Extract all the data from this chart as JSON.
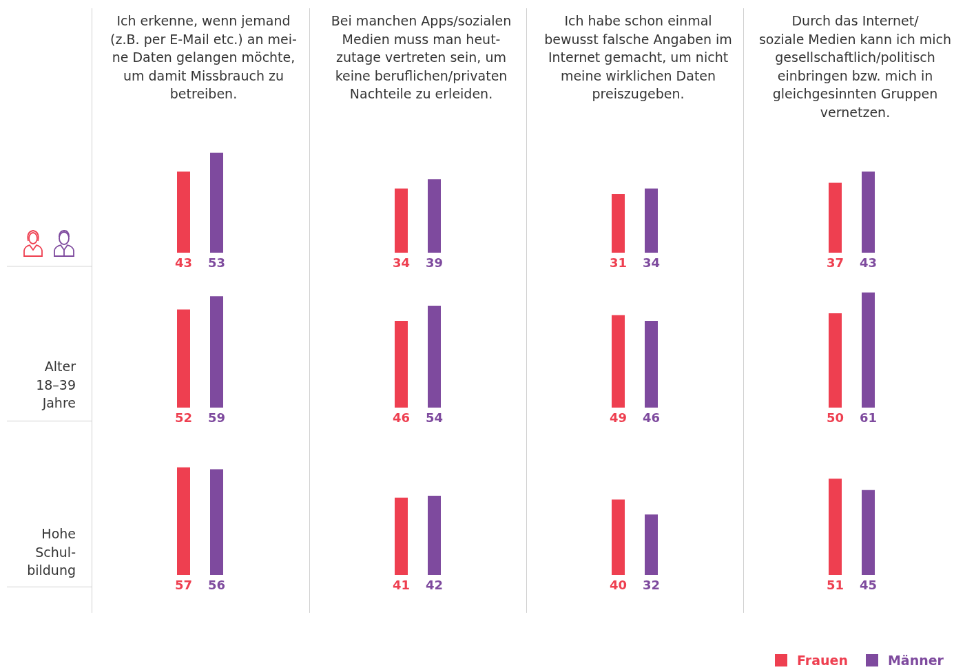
{
  "chart_data": [
    {
      "type": "bar",
      "title": "Ich erkenne, wenn jemand\n(z.B. per E-Mail etc.) an mei-\nne Daten gelangen möchte,\num damit Missbrauch zu\nbetreiben.",
      "categories": [
        null,
        null
      ],
      "values": [
        43,
        53
      ],
      "colors": [
        "#ee3f50",
        "#7e4a9e"
      ],
      "data_labels": true,
      "tick_labels": false,
      "grid": false
    },
    {
      "type": "bar",
      "title": "Bei manchen Apps/sozialen\nMedien muss man heut-\nzutage vertreten sein, um\nkeine beruflichen/privaten\nNachteile zu erleiden.",
      "categories": [
        null,
        null
      ],
      "values": [
        34,
        39
      ],
      "colors": [
        "#ee3f50",
        "#7e4a9e"
      ],
      "data_labels": true,
      "tick_labels": false,
      "grid": false
    },
    {
      "type": "bar",
      "title": "Ich habe schon einmal\nbewusst falsche Angaben im\nInternet gemacht, um nicht\nmeine wirklichen Daten\npreiszugeben.",
      "categories": [
        null,
        null
      ],
      "values": [
        31,
        34
      ],
      "colors": [
        "#ee3f50",
        "#7e4a9e"
      ],
      "data_labels": true,
      "tick_labels": false,
      "grid": false
    },
    {
      "type": "bar",
      "title": "Durch das Internet/\nsoziale Medien kann ich mich\ngesellschaftlich/politisch\neinbringen bzw. mich in\ngleichgesinnten Gruppen\nvernetzen.",
      "categories": [
        null,
        null
      ],
      "values": [
        37,
        43
      ],
      "colors": [
        "#ee3f50",
        "#7e4a9e"
      ],
      "data_labels": true,
      "tick_labels": false,
      "grid": false
    },
    {
      "type": "bar",
      "ylabel": "Alter\n18–39\nJahre",
      "categories": [
        null,
        null
      ],
      "values": [
        52,
        59
      ],
      "colors": [
        "#ee3f50",
        "#7e4a9e"
      ],
      "data_labels": true,
      "tick_labels": false,
      "grid": false
    },
    {
      "type": "bar",
      "categories": [
        null,
        null
      ],
      "values": [
        46,
        54
      ],
      "colors": [
        "#ee3f50",
        "#7e4a9e"
      ],
      "data_labels": true,
      "tick_labels": false,
      "grid": false
    },
    {
      "type": "bar",
      "categories": [
        null,
        null
      ],
      "values": [
        49,
        46
      ],
      "colors": [
        "#ee3f50",
        "#7e4a9e"
      ],
      "data_labels": true,
      "tick_labels": false,
      "grid": false
    },
    {
      "type": "bar",
      "categories": [
        null,
        null
      ],
      "values": [
        50,
        61
      ],
      "colors": [
        "#ee3f50",
        "#7e4a9e"
      ],
      "data_labels": true,
      "tick_labels": false,
      "grid": false
    },
    {
      "type": "bar",
      "ylabel": "Hohe\nSchul-\nbildung",
      "categories": [
        null,
        null
      ],
      "values": [
        57,
        56
      ],
      "colors": [
        "#ee3f50",
        "#7e4a9e"
      ],
      "data_labels": true,
      "tick_labels": false,
      "grid": false
    },
    {
      "type": "bar",
      "categories": [
        null,
        null
      ],
      "values": [
        41,
        42
      ],
      "colors": [
        "#ee3f50",
        "#7e4a9e"
      ],
      "data_labels": true,
      "tick_labels": false,
      "grid": false
    },
    {
      "type": "bar",
      "categories": [
        null,
        null
      ],
      "values": [
        40,
        32
      ],
      "colors": [
        "#ee3f50",
        "#7e4a9e"
      ],
      "data_labels": true,
      "tick_labels": false,
      "grid": false
    },
    {
      "type": "bar",
      "categories": [
        null,
        null
      ],
      "values": [
        51,
        45
      ],
      "colors": [
        "#ee3f50",
        "#7e4a9e"
      ],
      "data_labels": true,
      "tick_labels": false,
      "grid": false
    },
    {
      "type": "other",
      "annotations": [
        "Frauen",
        "Männer"
      ],
      "colors": [
        "#ee3f50",
        "#7e4a9e"
      ]
    }
  ]
}
